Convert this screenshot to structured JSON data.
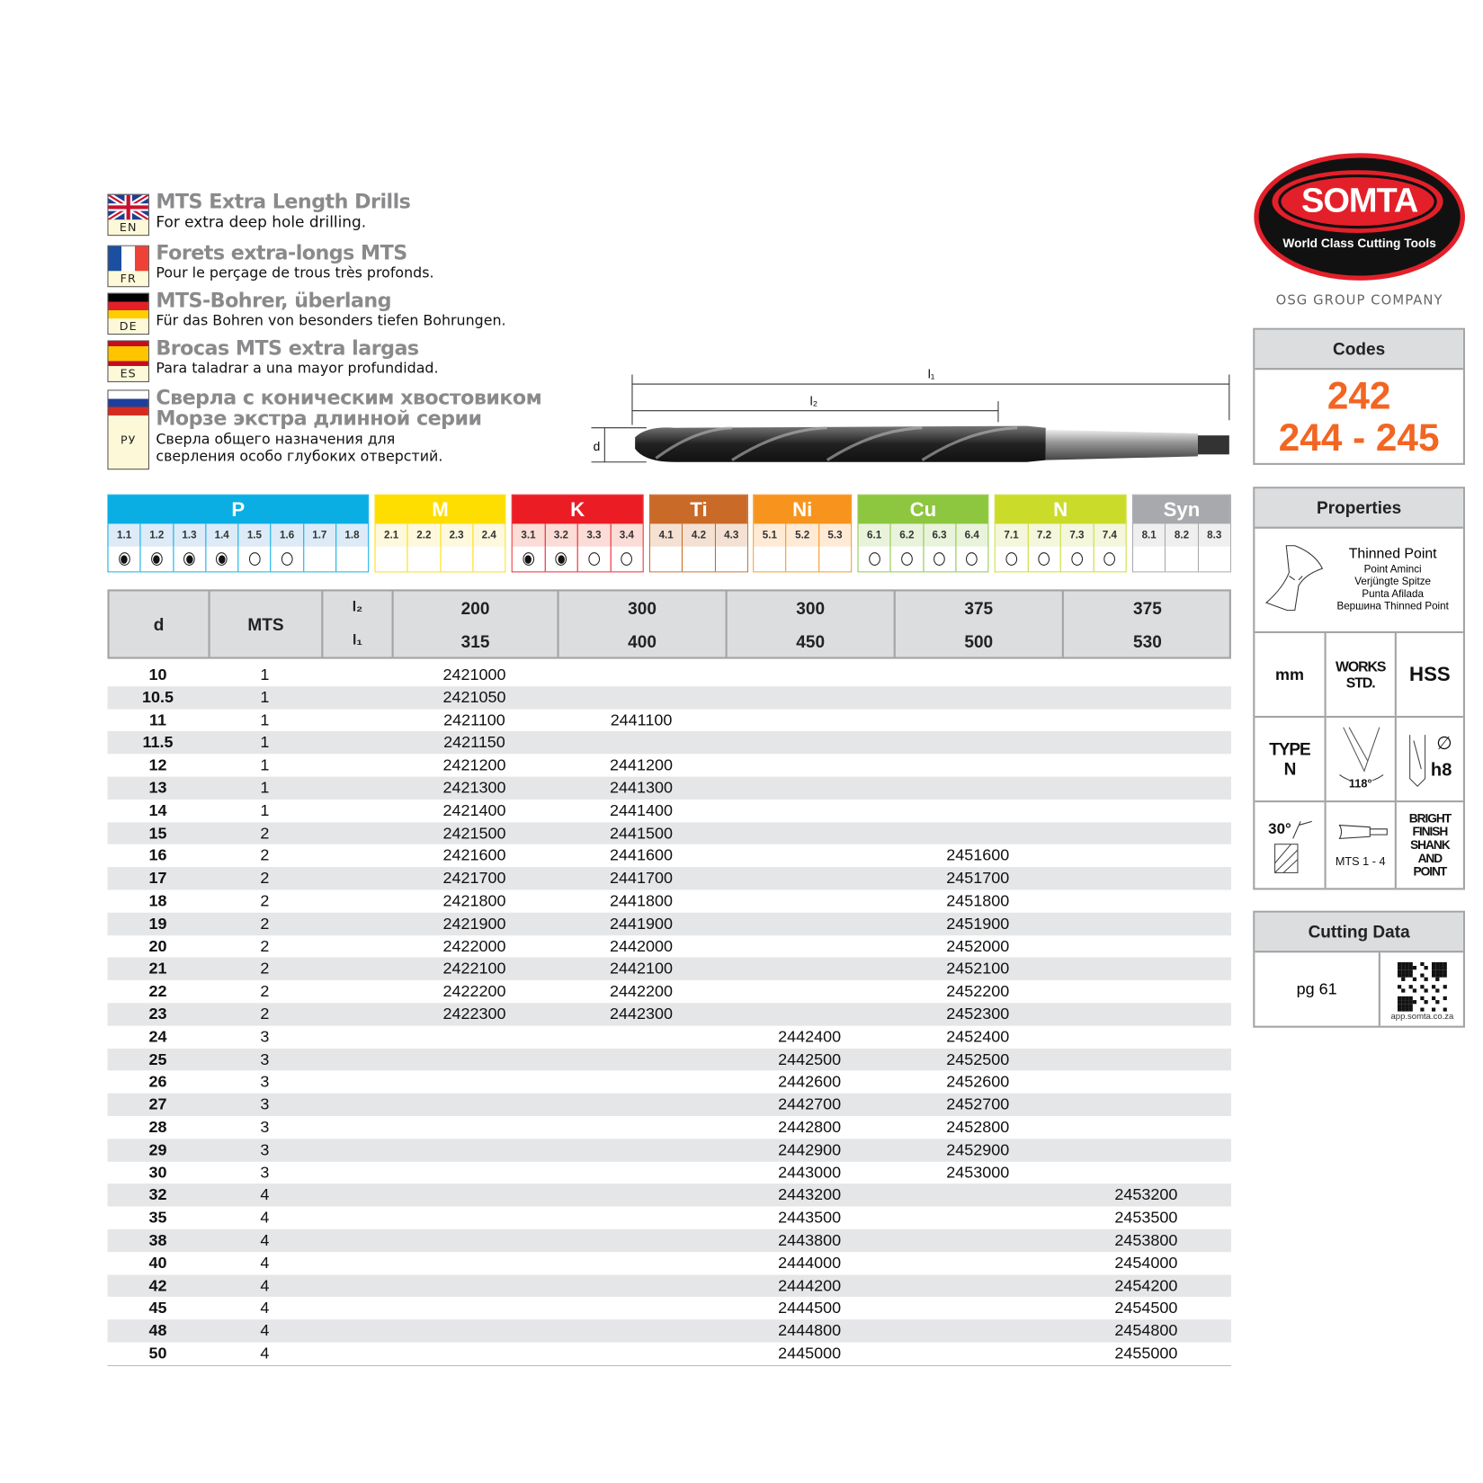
{
  "languages": [
    {
      "code": "EN",
      "title": "MTS Extra Length Drills",
      "subtitle": [
        "For extra deep hole drilling."
      ]
    },
    {
      "code": "FR",
      "title": "Forets extra-longs MTS",
      "subtitle": [
        "Pour le perçage de trous très profonds."
      ]
    },
    {
      "code": "DE",
      "title": "MTS-Bohrer, überlang",
      "subtitle": [
        "Für das Bohren von besonders tiefen Bohrungen."
      ]
    },
    {
      "code": "ES",
      "title": "Brocas MTS extra largas",
      "subtitle": [
        "Para taladrar a una mayor profundidad."
      ]
    },
    {
      "code": "РУ",
      "title": "Сверла с коническим хвостовиком",
      "title2": "Морзе экстра длинной серии",
      "subtitle": [
        "Сверла общего назначения для",
        "сверления особо глубоких отверстий."
      ]
    }
  ],
  "drawing": {
    "l1": "l₁",
    "l2": "l₂",
    "d": "d"
  },
  "materials": [
    {
      "label": "P",
      "color": "#0aaee3",
      "light": "#dcebf7",
      "subs": [
        "1.1",
        "1.2",
        "1.3",
        "1.4",
        "1.5",
        "1.6",
        "1.7",
        "1.8"
      ],
      "marks": [
        "filled",
        "filled",
        "filled",
        "filled",
        "empty",
        "empty",
        "",
        ""
      ]
    },
    {
      "label": "M",
      "color": "#fedd00",
      "light": "#fef9dc",
      "subs": [
        "2.1",
        "2.2",
        "2.3",
        "2.4"
      ],
      "marks": [
        "",
        "",
        "",
        ""
      ]
    },
    {
      "label": "K",
      "color": "#ec1c24",
      "light": "#fbdcd6",
      "subs": [
        "3.1",
        "3.2",
        "3.3",
        "3.4"
      ],
      "marks": [
        "filled",
        "filled",
        "empty",
        "empty"
      ]
    },
    {
      "label": "Ti",
      "color": "#c96a28",
      "light": "#f4e1d3",
      "subs": [
        "4.1",
        "4.2",
        "4.3"
      ],
      "marks": [
        "",
        "",
        ""
      ]
    },
    {
      "label": "Ni",
      "color": "#f7941d",
      "light": "#feead5",
      "subs": [
        "5.1",
        "5.2",
        "5.3"
      ],
      "marks": [
        "",
        "",
        ""
      ]
    },
    {
      "label": "Cu",
      "color": "#8dc63f",
      "light": "#e9f3dc",
      "subs": [
        "6.1",
        "6.2",
        "6.3",
        "6.4"
      ],
      "marks": [
        "empty",
        "empty",
        "empty",
        "empty"
      ]
    },
    {
      "label": "N",
      "color": "#cbdb2a",
      "light": "#f4f7dc",
      "subs": [
        "7.1",
        "7.2",
        "7.3",
        "7.4"
      ],
      "marks": [
        "empty",
        "empty",
        "empty",
        "empty"
      ]
    },
    {
      "label": "Syn",
      "color": "#a7a9ac",
      "light": "#efefef",
      "subs": [
        "8.1",
        "8.2",
        "8.3"
      ],
      "marks": [
        "",
        "",
        ""
      ]
    }
  ],
  "table": {
    "h_d": "d",
    "h_mts": "MTS",
    "h_l2": "l₂",
    "h_l1": "l₁",
    "columns": [
      {
        "l2": "200",
        "l1": "315"
      },
      {
        "l2": "300",
        "l1": "400"
      },
      {
        "l2": "300",
        "l1": "450"
      },
      {
        "l2": "375",
        "l1": "500"
      },
      {
        "l2": "375",
        "l1": "530"
      }
    ],
    "rows": [
      [
        "10",
        "1",
        "2421000",
        "",
        "",
        "",
        ""
      ],
      [
        "10.5",
        "1",
        "2421050",
        "",
        "",
        "",
        ""
      ],
      [
        "11",
        "1",
        "2421100",
        "2441100",
        "",
        "",
        ""
      ],
      [
        "11.5",
        "1",
        "2421150",
        "",
        "",
        "",
        ""
      ],
      [
        "12",
        "1",
        "2421200",
        "2441200",
        "",
        "",
        ""
      ],
      [
        "13",
        "1",
        "2421300",
        "2441300",
        "",
        "",
        ""
      ],
      [
        "14",
        "1",
        "2421400",
        "2441400",
        "",
        "",
        ""
      ],
      [
        "15",
        "2",
        "2421500",
        "2441500",
        "",
        "",
        ""
      ],
      [
        "16",
        "2",
        "2421600",
        "2441600",
        "",
        "2451600",
        ""
      ],
      [
        "17",
        "2",
        "2421700",
        "2441700",
        "",
        "2451700",
        ""
      ],
      [
        "18",
        "2",
        "2421800",
        "2441800",
        "",
        "2451800",
        ""
      ],
      [
        "19",
        "2",
        "2421900",
        "2441900",
        "",
        "2451900",
        ""
      ],
      [
        "20",
        "2",
        "2422000",
        "2442000",
        "",
        "2452000",
        ""
      ],
      [
        "21",
        "2",
        "2422100",
        "2442100",
        "",
        "2452100",
        ""
      ],
      [
        "22",
        "2",
        "2422200",
        "2442200",
        "",
        "2452200",
        ""
      ],
      [
        "23",
        "2",
        "2422300",
        "2442300",
        "",
        "2452300",
        ""
      ],
      [
        "24",
        "3",
        "",
        "",
        "2442400",
        "2452400",
        ""
      ],
      [
        "25",
        "3",
        "",
        "",
        "2442500",
        "2452500",
        ""
      ],
      [
        "26",
        "3",
        "",
        "",
        "2442600",
        "2452600",
        ""
      ],
      [
        "27",
        "3",
        "",
        "",
        "2442700",
        "2452700",
        ""
      ],
      [
        "28",
        "3",
        "",
        "",
        "2442800",
        "2452800",
        ""
      ],
      [
        "29",
        "3",
        "",
        "",
        "2442900",
        "2452900",
        ""
      ],
      [
        "30",
        "3",
        "",
        "",
        "2443000",
        "2453000",
        ""
      ],
      [
        "32",
        "4",
        "",
        "",
        "2443200",
        "",
        "2453200"
      ],
      [
        "35",
        "4",
        "",
        "",
        "2443500",
        "",
        "2453500"
      ],
      [
        "38",
        "4",
        "",
        "",
        "2443800",
        "",
        "2453800"
      ],
      [
        "40",
        "4",
        "",
        "",
        "2444000",
        "",
        "2454000"
      ],
      [
        "42",
        "4",
        "",
        "",
        "2444200",
        "",
        "2454200"
      ],
      [
        "45",
        "4",
        "",
        "",
        "2444500",
        "",
        "2454500"
      ],
      [
        "48",
        "4",
        "",
        "",
        "2444800",
        "",
        "2454800"
      ],
      [
        "50",
        "4",
        "",
        "",
        "2445000",
        "",
        "2455000"
      ]
    ]
  },
  "brand": {
    "logo": "SOMTA",
    "tagline": "World Class Cutting Tools",
    "group": "OSG GROUP COMPANY",
    "red": "#e3202a"
  },
  "codes": {
    "title": "Codes",
    "line1": "242",
    "line2": "244 - 245",
    "color": "#f26522"
  },
  "properties": {
    "title": "Properties",
    "point_title": "Thinned Point",
    "point_lines": [
      "Point Aminci",
      "Verjüngte Spitze",
      "Punta Afilada",
      "Вершина Thinned Point"
    ],
    "unit": "mm",
    "std": "WORKS STD.",
    "material": "HSS",
    "type": "TYPE N",
    "angle": "118°",
    "tolerance": "h8",
    "helix": "30°",
    "shank": "MTS 1 - 4",
    "finish": "BRIGHT FINISH SHANK AND POINT"
  },
  "cutting": {
    "title": "Cutting Data",
    "page": "pg 61",
    "url": "app.somta.co.za"
  }
}
